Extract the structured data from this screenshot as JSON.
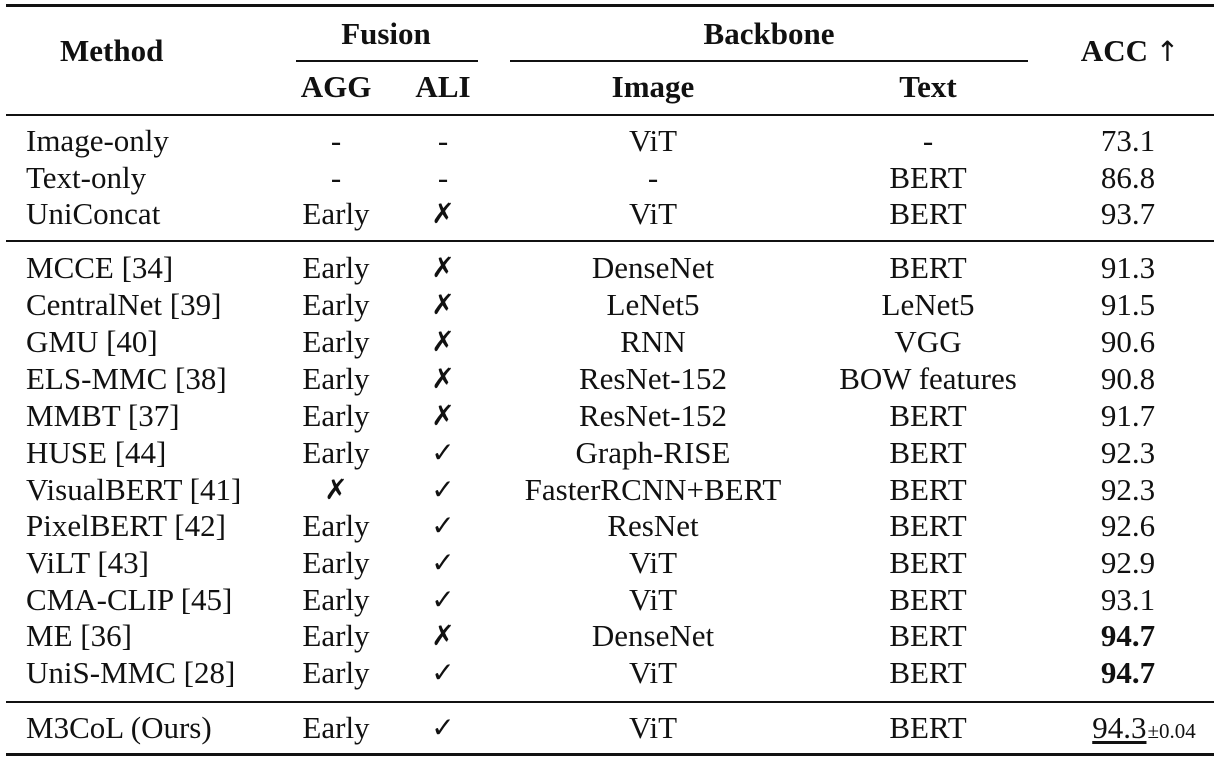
{
  "headers": {
    "method": "Method",
    "fusion": "Fusion",
    "agg": "AGG",
    "ali": "ALI",
    "backbone": "Backbone",
    "image": "Image",
    "text": "Text",
    "acc": "ACC",
    "acc_arrow": "↑"
  },
  "rows": [
    {
      "method": "Image-only",
      "agg": "-",
      "ali": "-",
      "image": "ViT",
      "text": "-",
      "acc": "73.1"
    },
    {
      "method": "Text-only",
      "agg": "-",
      "ali": "-",
      "image": "-",
      "text": "BERT",
      "acc": "86.8"
    },
    {
      "method": "UniConcat",
      "agg": "Early",
      "ali": "✗",
      "image": "ViT",
      "text": "BERT",
      "acc": "93.7"
    },
    {
      "method": "MCCE [34]",
      "agg": "Early",
      "ali": "✗",
      "image": "DenseNet",
      "text": "BERT",
      "acc": "91.3"
    },
    {
      "method": "CentralNet [39]",
      "agg": "Early",
      "ali": "✗",
      "image": "LeNet5",
      "text": "LeNet5",
      "acc": "91.5"
    },
    {
      "method": "GMU [40]",
      "agg": "Early",
      "ali": "✗",
      "image": "RNN",
      "text": "VGG",
      "acc": "90.6"
    },
    {
      "method": "ELS-MMC [38]",
      "agg": "Early",
      "ali": "✗",
      "image": "ResNet-152",
      "text": "BOW features",
      "acc": "90.8"
    },
    {
      "method": "MMBT [37]",
      "agg": "Early",
      "ali": "✗",
      "image": "ResNet-152",
      "text": "BERT",
      "acc": "91.7"
    },
    {
      "method": "HUSE [44]",
      "agg": "Early",
      "ali": "✓",
      "image": "Graph-RISE",
      "text": "BERT",
      "acc": "92.3"
    },
    {
      "method": "VisualBERT [41]",
      "agg": "✗",
      "ali": "✓",
      "image": "FasterRCNN+BERT",
      "text": "BERT",
      "acc": "92.3"
    },
    {
      "method": "PixelBERT [42]",
      "agg": "Early",
      "ali": "✓",
      "image": "ResNet",
      "text": "BERT",
      "acc": "92.6"
    },
    {
      "method": "ViLT [43]",
      "agg": "Early",
      "ali": "✓",
      "image": "ViT",
      "text": "BERT",
      "acc": "92.9"
    },
    {
      "method": "CMA-CLIP [45]",
      "agg": "Early",
      "ali": "✓",
      "image": "ViT",
      "text": "BERT",
      "acc": "93.1"
    },
    {
      "method": "ME [36]",
      "agg": "Early",
      "ali": "✗",
      "image": "DenseNet",
      "text": "BERT",
      "acc": "94.7",
      "bold": true
    },
    {
      "method": "UniS-MMC [28]",
      "agg": "Early",
      "ali": "✓",
      "image": "ViT",
      "text": "BERT",
      "acc": "94.7",
      "bold": true
    },
    {
      "method": "M3CoL (Ours)",
      "agg": "Early",
      "ali": "✓",
      "image": "ViT",
      "text": "BERT",
      "acc": "94.3",
      "acc_std": "±0.04",
      "underline": true
    }
  ]
}
